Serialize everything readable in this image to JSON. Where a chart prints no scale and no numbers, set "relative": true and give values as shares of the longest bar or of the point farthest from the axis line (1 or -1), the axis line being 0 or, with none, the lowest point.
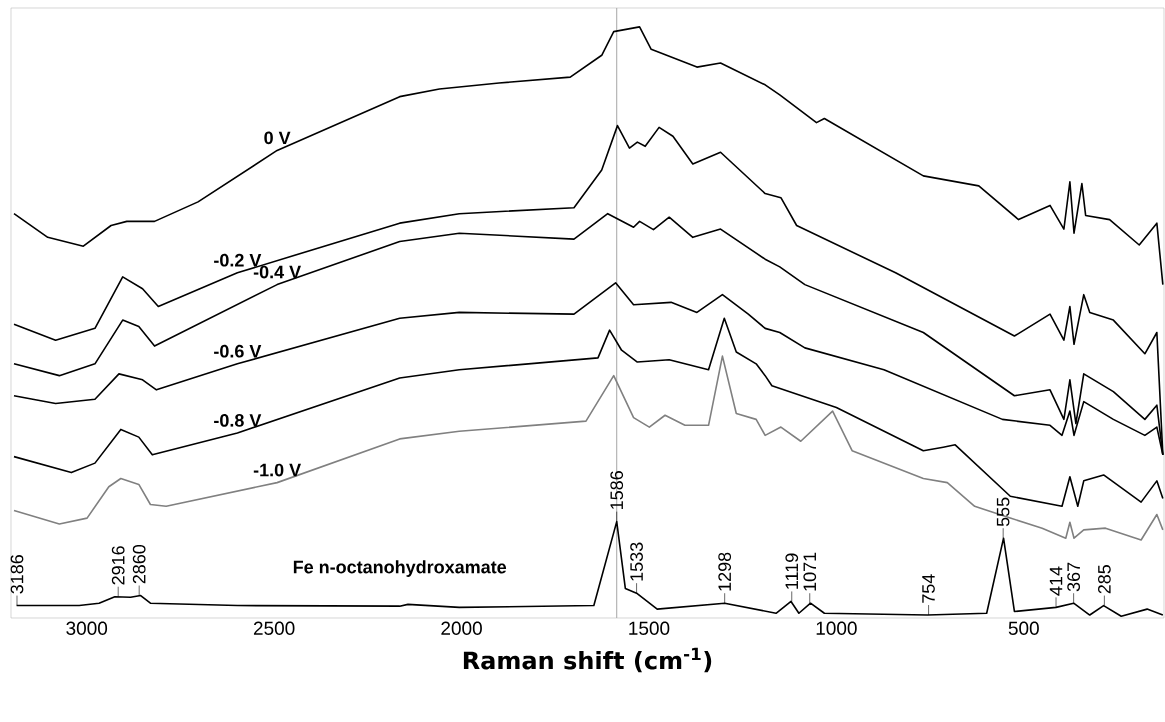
{
  "chart_data": {
    "type": "line",
    "relative": true,
    "xlabel": "Raman shift (cm$^{-1}$)",
    "xlim": [
      3202,
      126
    ],
    "xticks": [
      3000,
      2500,
      2000,
      1500,
      1000,
      500
    ],
    "series": [
      {
        "name": "0 V",
        "color": "#000000",
        "x": [
          3194,
          3104,
          3009,
          2935,
          2893,
          2819,
          2703,
          2492,
          2165,
          2059,
          1900,
          1710,
          1626,
          1594,
          1525,
          1494,
          1372,
          1309,
          1190,
          1151,
          1053,
          1032,
          768,
          620,
          514,
          430,
          393,
          377,
          366,
          345,
          335,
          271,
          192,
          145,
          129
        ],
        "values": [
          0.684,
          0.644,
          0.629,
          0.664,
          0.671,
          0.671,
          0.704,
          0.791,
          0.882,
          0.895,
          0.905,
          0.915,
          0.952,
          0.992,
          1.0,
          0.962,
          0.932,
          0.939,
          0.902,
          0.885,
          0.838,
          0.845,
          0.748,
          0.731,
          0.674,
          0.698,
          0.658,
          0.738,
          0.651,
          0.735,
          0.681,
          0.674,
          0.631,
          0.668,
          0.564
        ]
      },
      {
        "name": "-0.2 V",
        "color": "#000000",
        "x": [
          3194,
          3083,
          2978,
          2904,
          2851,
          2809,
          2598,
          2165,
          2006,
          1700,
          1626,
          1584,
          1552,
          1531,
          1510,
          1473,
          1436,
          1383,
          1309,
          1190,
          1148,
          1106,
          842,
          525,
          430,
          393,
          377,
          366,
          340,
          324,
          261,
          177,
          145,
          129
        ],
        "values": [
          0.497,
          0.47,
          0.49,
          0.577,
          0.557,
          0.527,
          0.584,
          0.668,
          0.684,
          0.694,
          0.758,
          0.833,
          0.795,
          0.805,
          0.798,
          0.83,
          0.815,
          0.768,
          0.788,
          0.718,
          0.711,
          0.664,
          0.584,
          0.477,
          0.514,
          0.47,
          0.527,
          0.463,
          0.547,
          0.517,
          0.504,
          0.447,
          0.483,
          0.276
        ]
      },
      {
        "name": "-0.4 V",
        "color": "#000000",
        "x": [
          3194,
          3073,
          2978,
          2904,
          2861,
          2819,
          2492,
          2165,
          2006,
          1700,
          1610,
          1541,
          1525,
          1488,
          1446,
          1383,
          1309,
          1190,
          1151,
          1084,
          768,
          525,
          430,
          393,
          377,
          361,
          340,
          261,
          177,
          145,
          129
        ],
        "values": [
          0.43,
          0.41,
          0.43,
          0.504,
          0.493,
          0.46,
          0.564,
          0.637,
          0.651,
          0.641,
          0.684,
          0.661,
          0.671,
          0.657,
          0.678,
          0.644,
          0.658,
          0.607,
          0.594,
          0.564,
          0.483,
          0.376,
          0.386,
          0.336,
          0.403,
          0.329,
          0.413,
          0.383,
          0.336,
          0.36,
          0.276
        ]
      },
      {
        "name": "-0.6 V",
        "color": "#000000",
        "x": [
          3194,
          3083,
          2978,
          2914,
          2851,
          2814,
          2598,
          2165,
          2006,
          1700,
          1589,
          1541,
          1441,
          1372,
          1304,
          1235,
          1190,
          1151,
          1084,
          873,
          557,
          430,
          398,
          377,
          366,
          340,
          261,
          177,
          145,
          129
        ],
        "values": [
          0.376,
          0.363,
          0.37,
          0.413,
          0.403,
          0.386,
          0.43,
          0.507,
          0.517,
          0.514,
          0.567,
          0.53,
          0.534,
          0.517,
          0.547,
          0.514,
          0.49,
          0.483,
          0.457,
          0.42,
          0.336,
          0.326,
          0.309,
          0.35,
          0.309,
          0.366,
          0.336,
          0.309,
          0.323,
          0.276
        ]
      },
      {
        "name": "-0.8 V",
        "color": "#000000",
        "x": [
          3194,
          3041,
          2978,
          2909,
          2861,
          2825,
          2598,
          2165,
          2006,
          1636,
          1605,
          1573,
          1531,
          1446,
          1341,
          1299,
          1267,
          1214,
          1190,
          1172,
          1000,
          768,
          715,
          683,
          536,
          398,
          377,
          356,
          340,
          287,
          187,
          145,
          129
        ],
        "values": [
          0.273,
          0.246,
          0.262,
          0.319,
          0.306,
          0.276,
          0.313,
          0.406,
          0.42,
          0.44,
          0.487,
          0.453,
          0.433,
          0.437,
          0.42,
          0.507,
          0.45,
          0.43,
          0.41,
          0.393,
          0.356,
          0.283,
          0.289,
          0.293,
          0.206,
          0.189,
          0.239,
          0.189,
          0.232,
          0.242,
          0.196,
          0.232,
          0.202
        ]
      },
      {
        "name": "-1.0 V",
        "color": "#808080",
        "x": [
          3194,
          3073,
          2999,
          2941,
          2909,
          2861,
          2830,
          2788,
          2492,
          2165,
          2006,
          1668,
          1594,
          1541,
          1499,
          1457,
          1404,
          1341,
          1304,
          1267,
          1214,
          1190,
          1148,
          1095,
          1010,
          958,
          768,
          704,
          631,
          536,
          451,
          388,
          377,
          366,
          340,
          282,
          187,
          145,
          129
        ],
        "values": [
          0.182,
          0.159,
          0.169,
          0.222,
          0.236,
          0.226,
          0.192,
          0.189,
          0.229,
          0.303,
          0.316,
          0.333,
          0.41,
          0.339,
          0.323,
          0.343,
          0.326,
          0.326,
          0.443,
          0.346,
          0.336,
          0.309,
          0.323,
          0.299,
          0.35,
          0.283,
          0.236,
          0.229,
          0.189,
          0.169,
          0.152,
          0.135,
          0.162,
          0.135,
          0.149,
          0.152,
          0.132,
          0.175,
          0.149
        ]
      },
      {
        "name": "Fe n-octanohydroxamate",
        "color": "#000000",
        "x": [
          3187,
          3020,
          2967,
          2925,
          2883,
          2856,
          2830,
          2598,
          2165,
          2143,
          2006,
          1647,
          1586,
          1563,
          1533,
          1478,
          1298,
          1161,
          1121,
          1100,
          1069,
          1032,
          757,
          599,
          554,
          525,
          414,
          367,
          324,
          287,
          240,
          171,
          129
        ],
        "values": [
          0.021,
          0.021,
          0.025,
          0.036,
          0.035,
          0.038,
          0.025,
          0.021,
          0.02,
          0.023,
          0.018,
          0.021,
          0.163,
          0.05,
          0.042,
          0.015,
          0.025,
          0.008,
          0.028,
          0.008,
          0.025,
          0.008,
          0.005,
          0.008,
          0.135,
          0.011,
          0.018,
          0.025,
          0.005,
          0.021,
          0.003,
          0.015,
          0.005
        ]
      }
    ],
    "annotations": [
      {
        "text": "3186",
        "x": 3186,
        "y": 0.021
      },
      {
        "text": "2916",
        "x": 2916,
        "y": 0.036
      },
      {
        "text": "2860",
        "x": 2860,
        "y": 0.038
      },
      {
        "text": "1586",
        "x": 1586,
        "y": 0.163
      },
      {
        "text": "1533",
        "x": 1533,
        "y": 0.042
      },
      {
        "text": "1298",
        "x": 1298,
        "y": 0.025
      },
      {
        "text": "1119",
        "x": 1119,
        "y": 0.028
      },
      {
        "text": "1071",
        "x": 1071,
        "y": 0.025
      },
      {
        "text": "754",
        "x": 754,
        "y": 0.005
      },
      {
        "text": "555",
        "x": 555,
        "y": 0.135
      },
      {
        "text": "414",
        "x": 414,
        "y": 0.018
      },
      {
        "text": "367",
        "x": 367,
        "y": 0.025
      },
      {
        "text": "285",
        "x": 285,
        "y": 0.021
      }
    ],
    "ref_lines": [
      {
        "axis": "x",
        "value": 1586,
        "color": "#a6a6a6"
      }
    ]
  }
}
